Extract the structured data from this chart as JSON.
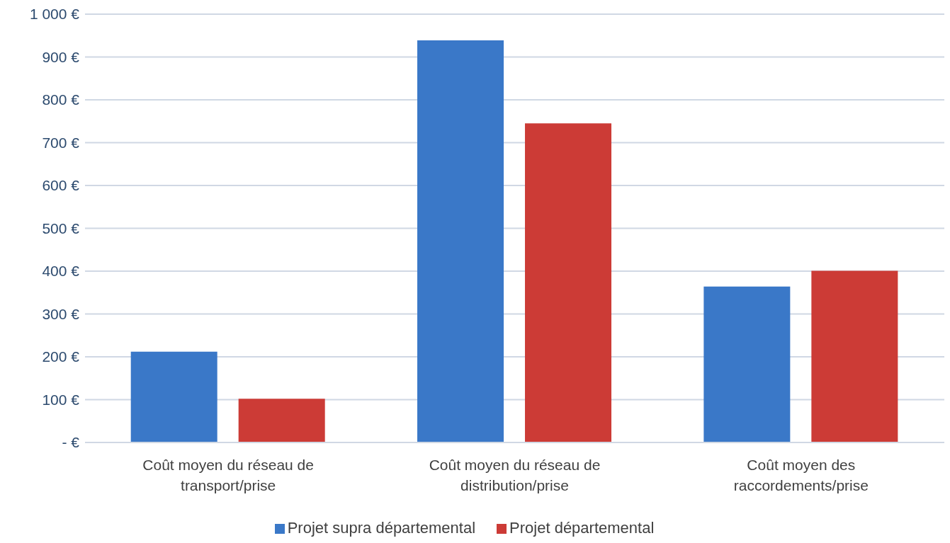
{
  "chart_data": {
    "type": "bar",
    "categories": [
      "Coût moyen du réseau de transport/prise",
      "Coût moyen du réseau de distribution/prise",
      "Coût moyen des raccordements/prise"
    ],
    "series": [
      {
        "name": "Projet supra départemental",
        "color": "#3a78c8",
        "values": [
          212,
          939,
          364
        ]
      },
      {
        "name": "Projet départemental",
        "color": "#cc3b36",
        "values": [
          102,
          745,
          401
        ]
      }
    ],
    "ylim": [
      0,
      1000
    ],
    "yticks": [
      {
        "value": 0,
        "label": "-   €"
      },
      {
        "value": 100,
        "label": "100 €"
      },
      {
        "value": 200,
        "label": "200 €"
      },
      {
        "value": 300,
        "label": "300 €"
      },
      {
        "value": 400,
        "label": "400 €"
      },
      {
        "value": 500,
        "label": "500 €"
      },
      {
        "value": 600,
        "label": "600 €"
      },
      {
        "value": 700,
        "label": "700 €"
      },
      {
        "value": 800,
        "label": "800 €"
      },
      {
        "value": 900,
        "label": "900 €"
      },
      {
        "value": 1000,
        "label": "1 000 €"
      }
    ],
    "grid": "y",
    "legend": "bottom"
  }
}
